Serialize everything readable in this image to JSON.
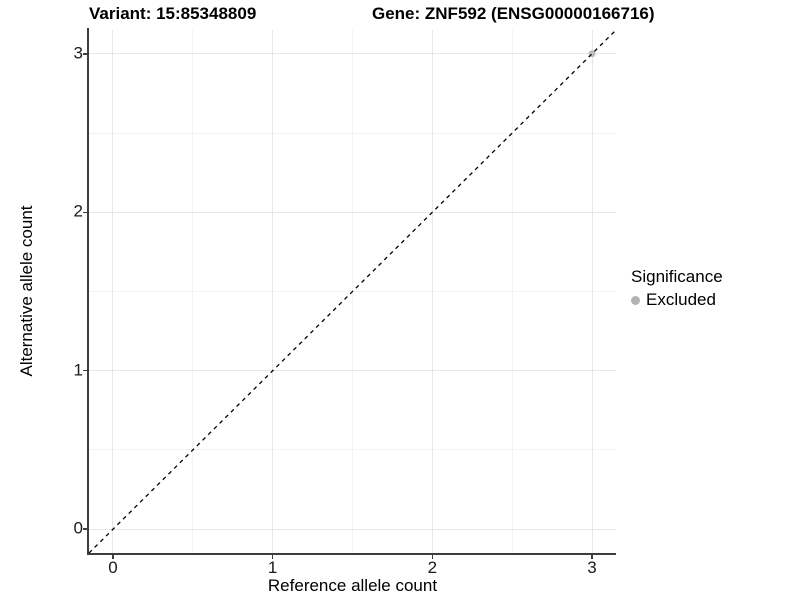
{
  "chart_data": {
    "type": "scatter",
    "title_left": "Variant: 15:85348809",
    "title_right": "Gene: ZNF592 (ENSG00000166716)",
    "xlabel": "Reference allele count",
    "ylabel": "Alternative allele count",
    "xlim": [
      -0.15,
      3.15
    ],
    "ylim": [
      -0.15,
      3.15
    ],
    "xticks": [
      0,
      1,
      2,
      3
    ],
    "yticks": [
      0,
      1,
      2,
      3
    ],
    "minor_ticks_x": [
      0.5,
      1.5,
      2.5
    ],
    "minor_ticks_y": [
      0.5,
      1.5,
      2.5
    ],
    "grid": true,
    "points": [
      {
        "x": 3,
        "y": 3,
        "significance": "Excluded",
        "color": "#bdbdbd",
        "radius": 3.5
      }
    ],
    "reference_line": {
      "type": "identity",
      "equation": "y = x",
      "style": "dashed",
      "color": "#000000",
      "from": [
        -0.15,
        -0.15
      ],
      "to": [
        3.15,
        3.15
      ]
    },
    "legend": {
      "title": "Significance",
      "position": "right",
      "items": [
        {
          "label": "Excluded",
          "color": "#b3b3b3"
        }
      ]
    }
  },
  "colors": {
    "background": "#ffffff",
    "axis_line": "#3d3d3d",
    "grid_major": "#e7e7e7",
    "grid_minor": "#f2f2f2",
    "tick_label": "#1a1a1a"
  }
}
